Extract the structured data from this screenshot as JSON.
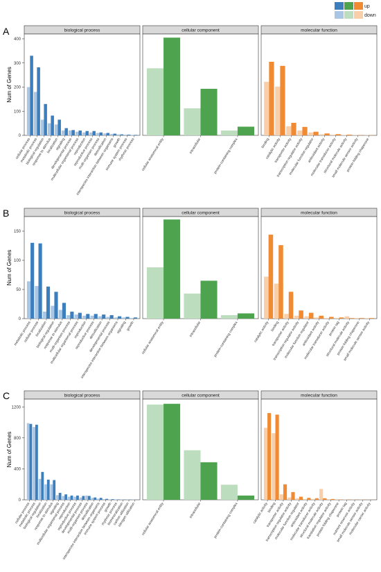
{
  "legend": {
    "row1_label": "up",
    "row2_label": "down",
    "colors": {
      "bp_up": "#3D7EBD",
      "bp_down": "#A9C6E4",
      "cc_up": "#4EA34F",
      "cc_down": "#BDDEBE",
      "mf_up": "#F08A33",
      "mf_down": "#F8CFA8"
    }
  },
  "facet_titles": [
    "biological process",
    "cellular component",
    "molecular function"
  ],
  "chart_data": [
    {
      "type": "bar",
      "panel_label": "A",
      "ylabel": "Num of Genes",
      "ylim": [
        0,
        420
      ],
      "yticks": [
        0,
        100,
        200,
        300,
        400
      ],
      "facets": [
        {
          "name": "biological process",
          "categories": [
            "cellular process",
            "metabolic process",
            "biological regulation",
            "response to stimulus",
            "localization",
            "signaling",
            "developmental process",
            "multicellular organismal process",
            "reproduction",
            "reproductive process",
            "multi-organism process",
            "detoxification",
            "interspecies interaction between organisms",
            "growth",
            "immune system process",
            "rhythmic process"
          ],
          "series": [
            {
              "name": "down",
              "values": [
                200,
                180,
                65,
                50,
                45,
                20,
                20,
                15,
                12,
                12,
                10,
                8,
                6,
                4,
                3,
                2
              ]
            },
            {
              "name": "up",
              "values": [
                330,
                282,
                130,
                82,
                65,
                30,
                22,
                20,
                18,
                18,
                12,
                10,
                7,
                4,
                3,
                2
              ]
            }
          ]
        },
        {
          "name": "cellular component",
          "categories": [
            "cellular anatomical entity",
            "intracellular",
            "protein-containing complex"
          ],
          "series": [
            {
              "name": "down",
              "values": [
                278,
                112,
                20
              ]
            },
            {
              "name": "up",
              "values": [
                405,
                193,
                36
              ]
            }
          ]
        },
        {
          "name": "molecular function",
          "categories": [
            "binding",
            "catalytic activity",
            "transporter activity",
            "transcription regulator activity",
            "molecular function regulator",
            "antioxidant activity",
            "molecular transducer activity",
            "structural molecule activity",
            "small molecule sensor activity",
            "protein folding chaperone"
          ],
          "series": [
            {
              "name": "down",
              "values": [
                222,
                202,
                38,
                20,
                12,
                5,
                3,
                2,
                1,
                1
              ]
            },
            {
              "name": "up",
              "values": [
                305,
                288,
                52,
                35,
                15,
                8,
                5,
                3,
                1,
                1
              ]
            }
          ]
        }
      ]
    },
    {
      "type": "bar",
      "panel_label": "B",
      "ylabel": "Num of Genes",
      "ylim": [
        0,
        175
      ],
      "yticks": [
        0,
        50,
        100,
        150
      ],
      "facets": [
        {
          "name": "biological process",
          "categories": [
            "metabolic process",
            "cellular process",
            "localization",
            "biological regulation",
            "response to stimulus",
            "multi-organism process",
            "multicellular organismal process",
            "reproduction",
            "reproductive process",
            "detoxification",
            "developmental process",
            "interspecies interaction between organisms",
            "signaling",
            "growth"
          ],
          "series": [
            {
              "name": "down",
              "values": [
                64,
                56,
                12,
                22,
                15,
                6,
                7,
                5,
                5,
                4,
                3,
                2,
                2,
                1
              ]
            },
            {
              "name": "up",
              "values": [
                130,
                129,
                55,
                46,
                27,
                12,
                10,
                8,
                8,
                7,
                6,
                4,
                3,
                2
              ]
            }
          ]
        },
        {
          "name": "cellular component",
          "categories": [
            "cellular anatomical entity",
            "intracellular",
            "protein-containing complex"
          ],
          "series": [
            {
              "name": "down",
              "values": [
                88,
                43,
                6
              ]
            },
            {
              "name": "up",
              "values": [
                170,
                65,
                9
              ]
            }
          ]
        },
        {
          "name": "molecular function",
          "categories": [
            "catalytic activity",
            "binding",
            "transporter activity",
            "transcription regulator activity",
            "molecular function regulator",
            "antioxidant activity",
            "molecular transducer activity",
            "protein tag",
            "structural molecule activity",
            "protein folding chaperone",
            "small molecule sensor activity"
          ],
          "series": [
            {
              "name": "down",
              "values": [
                72,
                60,
                8,
                5,
                4,
                2,
                1,
                1,
                4,
                1,
                1
              ]
            },
            {
              "name": "up",
              "values": [
                144,
                126,
                46,
                14,
                10,
                5,
                3,
                2,
                1,
                1,
                1
              ]
            }
          ]
        }
      ]
    },
    {
      "type": "bar",
      "panel_label": "C",
      "ylabel": "Num of Genes",
      "ylim": [
        0,
        1300
      ],
      "yticks": [
        0,
        400,
        800,
        1200
      ],
      "facets": [
        {
          "name": "biological process",
          "categories": [
            "cellular process",
            "metabolic process",
            "biological regulation",
            "localization",
            "response to stimulus",
            "signaling",
            "multicellular organismal process",
            "reproduction",
            "reproductive process",
            "developmental process",
            "multi-organism process",
            "detoxification",
            "interspecies interaction between organisms",
            "immune system process",
            "growth",
            "rhythmic process",
            "biomineralization",
            "carbon utilization",
            "nitrogen utilization"
          ],
          "series": [
            {
              "name": "down",
              "values": [
                990,
                940,
                270,
                200,
                200,
                60,
                50,
                40,
                40,
                30,
                55,
                25,
                15,
                8,
                5,
                3,
                2,
                2,
                2
              ]
            },
            {
              "name": "up",
              "values": [
                980,
                970,
                360,
                260,
                255,
                90,
                70,
                55,
                55,
                50,
                50,
                30,
                25,
                12,
                8,
                5,
                3,
                2,
                2
              ]
            }
          ]
        },
        {
          "name": "cellular component",
          "categories": [
            "cellular anatomical entity",
            "intracellular",
            "protein-containing complex"
          ],
          "series": [
            {
              "name": "down",
              "values": [
                1230,
                640,
                195
              ]
            },
            {
              "name": "up",
              "values": [
                1240,
                485,
                55
              ]
            }
          ]
        },
        {
          "name": "molecular function",
          "categories": [
            "catalytic activity",
            "binding",
            "transporter activity",
            "transcription regulator activity",
            "molecular function regulator",
            "antioxidant activity",
            "molecular transducer activity",
            "structural molecule activity",
            "translation regulator activity",
            "protein folding chaperone",
            "protein tag",
            "nutrient reservoir activity",
            "small molecule sensor activity",
            "molecular carrier activity"
          ],
          "series": [
            {
              "name": "down",
              "values": [
                930,
                860,
                70,
                30,
                20,
                10,
                10,
                140,
                8,
                3,
                3,
                2,
                2,
                1
              ]
            },
            {
              "name": "up",
              "values": [
                1120,
                1100,
                200,
                100,
                40,
                25,
                20,
                20,
                10,
                4,
                3,
                2,
                2,
                1
              ]
            }
          ]
        }
      ]
    }
  ]
}
